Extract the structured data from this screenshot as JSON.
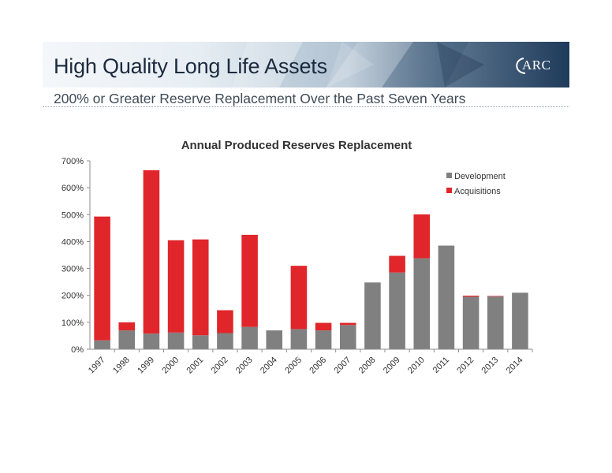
{
  "header": {
    "title": "High Quality Long Life Assets",
    "subtitle": "200% or Greater Reserve Replacement Over the Past Seven Years",
    "logo_text": "ARC"
  },
  "colors": {
    "development": "#808080",
    "acquisitions": "#e0262a",
    "axis": "#8c8c8c",
    "text": "#333333",
    "title_text": "#1b2a3e"
  },
  "chart_data": {
    "type": "bar",
    "stacked": true,
    "title": "Annual Produced Reserves Replacement",
    "xlabel": "",
    "ylabel": "",
    "ylim": [
      0,
      700
    ],
    "y_ticks": [
      "0%",
      "100%",
      "200%",
      "300%",
      "400%",
      "500%",
      "600%",
      "700%"
    ],
    "grid": false,
    "legend_position": "top-right",
    "categories": [
      "1997",
      "1998",
      "1999",
      "2000",
      "2001",
      "2002",
      "2003",
      "2004",
      "2005",
      "2006",
      "2007",
      "2008",
      "2009",
      "2010",
      "2011",
      "2012",
      "2013",
      "2014"
    ],
    "series": [
      {
        "name": "Development",
        "color": "#808080",
        "values": [
          33,
          70,
          58,
          62,
          52,
          60,
          83,
          70,
          75,
          70,
          90,
          248,
          285,
          338,
          385,
          195,
          196,
          210
        ]
      },
      {
        "name": "Acquisitions",
        "color": "#e0262a",
        "values": [
          460,
          30,
          607,
          343,
          356,
          85,
          342,
          0,
          235,
          28,
          8,
          0,
          62,
          163,
          0,
          4,
          2,
          0
        ]
      }
    ]
  }
}
